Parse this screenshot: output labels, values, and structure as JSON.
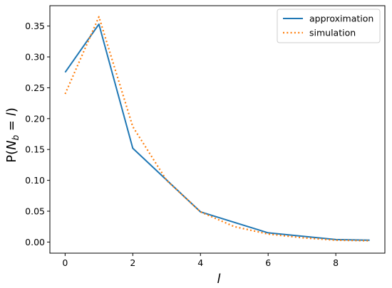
{
  "chart_data": {
    "type": "line",
    "title": "",
    "xlabel": "l",
    "ylabel": "P(N_b = l)",
    "xlim": [
      -0.45,
      9.45
    ],
    "ylim": [
      -0.018,
      0.383
    ],
    "xticks": [
      0,
      2,
      4,
      6,
      8
    ],
    "xtick_labels": [
      "0",
      "2",
      "4",
      "6",
      "8"
    ],
    "yticks": [
      0.0,
      0.05,
      0.1,
      0.15,
      0.2,
      0.25,
      0.3,
      0.35
    ],
    "ytick_labels": [
      "0.00",
      "0.05",
      "0.10",
      "0.15",
      "0.20",
      "0.25",
      "0.30",
      "0.35"
    ],
    "grid": false,
    "legend_position": "top-right",
    "series": [
      {
        "name": "approximation",
        "color": "#1f77b4",
        "style": "solid",
        "x": [
          0,
          1,
          2,
          4,
          6,
          8,
          9
        ],
        "y": [
          0.275,
          0.353,
          0.152,
          0.049,
          0.015,
          0.004,
          0.003
        ]
      },
      {
        "name": "simulation",
        "color": "#ff7f0e",
        "style": "dotted",
        "x": [
          0,
          1,
          2,
          3,
          4,
          5,
          6,
          7,
          8,
          9
        ],
        "y": [
          0.24,
          0.365,
          0.187,
          0.1,
          0.049,
          0.025,
          0.013,
          0.007,
          0.003,
          0.002
        ]
      }
    ]
  }
}
